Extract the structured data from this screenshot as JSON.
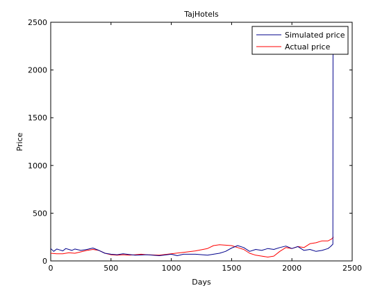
{
  "chart_data": {
    "type": "line",
    "title": "TajHotels",
    "xlabel": "Days",
    "ylabel": "Price",
    "xlim": [
      0,
      2500
    ],
    "ylim": [
      0,
      2500
    ],
    "xticks": [
      0,
      500,
      1000,
      1500,
      2000,
      2500
    ],
    "yticks": [
      0,
      500,
      1000,
      1500,
      2000,
      2500
    ],
    "grid": false,
    "legend_position": "top-right",
    "series": [
      {
        "name": "Simulated price",
        "color": "#00008b",
        "x": [
          0,
          25,
          50,
          75,
          100,
          125,
          150,
          175,
          200,
          250,
          300,
          350,
          400,
          450,
          500,
          550,
          600,
          700,
          800,
          900,
          1000,
          1050,
          1100,
          1200,
          1300,
          1400,
          1450,
          1500,
          1550,
          1600,
          1650,
          1700,
          1750,
          1800,
          1850,
          1900,
          1950,
          2000,
          2050,
          2100,
          2150,
          2200,
          2250,
          2300,
          2320,
          2340,
          2341,
          2345
        ],
        "y": [
          130,
          100,
          125,
          115,
          105,
          130,
          120,
          110,
          125,
          110,
          120,
          135,
          110,
          80,
          70,
          65,
          75,
          60,
          65,
          55,
          70,
          55,
          70,
          70,
          60,
          80,
          100,
          135,
          160,
          140,
          100,
          120,
          110,
          130,
          120,
          140,
          155,
          130,
          150,
          110,
          120,
          100,
          110,
          130,
          150,
          175,
          2150,
          2230
        ]
      },
      {
        "name": "Actual price",
        "color": "#ff0000",
        "x": [
          0,
          50,
          100,
          150,
          200,
          250,
          300,
          350,
          400,
          450,
          500,
          550,
          600,
          650,
          700,
          750,
          800,
          900,
          1000,
          1100,
          1200,
          1300,
          1350,
          1400,
          1450,
          1500,
          1550,
          1600,
          1650,
          1700,
          1750,
          1800,
          1850,
          1900,
          1950,
          2000,
          2050,
          2100,
          2150,
          2200,
          2250,
          2300,
          2330,
          2345
        ],
        "y": [
          80,
          75,
          75,
          85,
          80,
          95,
          110,
          120,
          110,
          80,
          65,
          60,
          65,
          60,
          65,
          70,
          65,
          60,
          75,
          90,
          105,
          130,
          160,
          170,
          165,
          160,
          140,
          120,
          80,
          60,
          50,
          40,
          50,
          100,
          140,
          130,
          150,
          140,
          180,
          190,
          210,
          210,
          230,
          250
        ]
      }
    ]
  }
}
